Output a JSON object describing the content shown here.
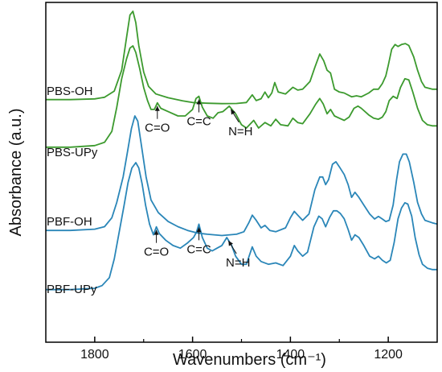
{
  "chart_data": {
    "type": "line",
    "xlabel": "Wavenumbers (cm⁻¹)",
    "ylabel": "Absorbance (a.u.)",
    "xlim": [
      1900,
      1100
    ],
    "x_reversed": true,
    "xticks": [
      1800,
      1600,
      1400,
      1200
    ],
    "y_ticks_shown": false,
    "colors": {
      "PBS": "#3c9a2e",
      "PBF": "#2a86b8"
    },
    "series": [
      {
        "name": "PBS-OH",
        "color": "#3c9a2e",
        "points": [
          [
            1900,
            0.07
          ],
          [
            1850,
            0.07
          ],
          [
            1800,
            0.078
          ],
          [
            1780,
            0.095
          ],
          [
            1760,
            0.16
          ],
          [
            1745,
            0.38
          ],
          [
            1735,
            0.72
          ],
          [
            1728,
            0.96
          ],
          [
            1722,
            1.0
          ],
          [
            1716,
            0.88
          ],
          [
            1710,
            0.64
          ],
          [
            1700,
            0.36
          ],
          [
            1690,
            0.21
          ],
          [
            1675,
            0.13
          ],
          [
            1650,
            0.09
          ],
          [
            1620,
            0.058
          ],
          [
            1600,
            0.04
          ],
          [
            1570,
            0.032
          ],
          [
            1540,
            0.028
          ],
          [
            1510,
            0.03
          ],
          [
            1490,
            0.04
          ],
          [
            1478,
            0.12
          ],
          [
            1470,
            0.06
          ],
          [
            1460,
            0.08
          ],
          [
            1452,
            0.15
          ],
          [
            1445,
            0.09
          ],
          [
            1438,
            0.14
          ],
          [
            1432,
            0.25
          ],
          [
            1425,
            0.15
          ],
          [
            1410,
            0.13
          ],
          [
            1395,
            0.2
          ],
          [
            1385,
            0.17
          ],
          [
            1375,
            0.18
          ],
          [
            1360,
            0.26
          ],
          [
            1350,
            0.41
          ],
          [
            1340,
            0.55
          ],
          [
            1332,
            0.48
          ],
          [
            1325,
            0.38
          ],
          [
            1318,
            0.35
          ],
          [
            1310,
            0.18
          ],
          [
            1300,
            0.15
          ],
          [
            1290,
            0.14
          ],
          [
            1275,
            0.1
          ],
          [
            1265,
            0.11
          ],
          [
            1255,
            0.1
          ],
          [
            1240,
            0.14
          ],
          [
            1230,
            0.18
          ],
          [
            1220,
            0.18
          ],
          [
            1212,
            0.24
          ],
          [
            1205,
            0.32
          ],
          [
            1200,
            0.43
          ],
          [
            1193,
            0.6
          ],
          [
            1186,
            0.65
          ],
          [
            1180,
            0.63
          ],
          [
            1173,
            0.65
          ],
          [
            1165,
            0.66
          ],
          [
            1158,
            0.64
          ],
          [
            1148,
            0.52
          ],
          [
            1140,
            0.38
          ],
          [
            1132,
            0.26
          ],
          [
            1125,
            0.2
          ],
          [
            1110,
            0.18
          ],
          [
            1100,
            0.18
          ]
        ]
      },
      {
        "name": "PBS-UPy",
        "color": "#3c9a2e",
        "points": [
          [
            1900,
            0.075
          ],
          [
            1850,
            0.075
          ],
          [
            1800,
            0.09
          ],
          [
            1780,
            0.12
          ],
          [
            1765,
            0.22
          ],
          [
            1755,
            0.44
          ],
          [
            1745,
            0.7
          ],
          [
            1735,
            0.88
          ],
          [
            1728,
            0.98
          ],
          [
            1722,
            1.0
          ],
          [
            1716,
            0.94
          ],
          [
            1708,
            0.79
          ],
          [
            1700,
            0.62
          ],
          [
            1692,
            0.5
          ],
          [
            1685,
            0.42
          ],
          [
            1678,
            0.42
          ],
          [
            1672,
            0.48
          ],
          [
            1665,
            0.43
          ],
          [
            1650,
            0.4
          ],
          [
            1630,
            0.36
          ],
          [
            1615,
            0.36
          ],
          [
            1600,
            0.42
          ],
          [
            1593,
            0.52
          ],
          [
            1587,
            0.54
          ],
          [
            1580,
            0.44
          ],
          [
            1570,
            0.36
          ],
          [
            1558,
            0.34
          ],
          [
            1548,
            0.39
          ],
          [
            1538,
            0.4
          ],
          [
            1525,
            0.45
          ],
          [
            1512,
            0.38
          ],
          [
            1500,
            0.28
          ],
          [
            1490,
            0.25
          ],
          [
            1475,
            0.32
          ],
          [
            1465,
            0.25
          ],
          [
            1452,
            0.3
          ],
          [
            1440,
            0.27
          ],
          [
            1430,
            0.33
          ],
          [
            1420,
            0.28
          ],
          [
            1405,
            0.27
          ],
          [
            1395,
            0.34
          ],
          [
            1385,
            0.3
          ],
          [
            1375,
            0.29
          ],
          [
            1360,
            0.38
          ],
          [
            1348,
            0.47
          ],
          [
            1340,
            0.52
          ],
          [
            1333,
            0.47
          ],
          [
            1325,
            0.38
          ],
          [
            1318,
            0.42
          ],
          [
            1310,
            0.36
          ],
          [
            1300,
            0.34
          ],
          [
            1290,
            0.32
          ],
          [
            1280,
            0.35
          ],
          [
            1270,
            0.43
          ],
          [
            1262,
            0.45
          ],
          [
            1255,
            0.43
          ],
          [
            1240,
            0.37
          ],
          [
            1230,
            0.34
          ],
          [
            1220,
            0.33
          ],
          [
            1212,
            0.35
          ],
          [
            1205,
            0.4
          ],
          [
            1198,
            0.5
          ],
          [
            1190,
            0.54
          ],
          [
            1182,
            0.52
          ],
          [
            1175,
            0.62
          ],
          [
            1166,
            0.7
          ],
          [
            1158,
            0.69
          ],
          [
            1150,
            0.58
          ],
          [
            1140,
            0.43
          ],
          [
            1130,
            0.32
          ],
          [
            1120,
            0.28
          ],
          [
            1110,
            0.27
          ],
          [
            1100,
            0.27
          ]
        ]
      },
      {
        "name": "PBF-OH",
        "color": "#2a86b8",
        "points": [
          [
            1900,
            0.1
          ],
          [
            1850,
            0.1
          ],
          [
            1800,
            0.11
          ],
          [
            1780,
            0.13
          ],
          [
            1765,
            0.2
          ],
          [
            1755,
            0.32
          ],
          [
            1742,
            0.52
          ],
          [
            1733,
            0.72
          ],
          [
            1725,
            0.9
          ],
          [
            1718,
            1.0
          ],
          [
            1712,
            0.96
          ],
          [
            1705,
            0.78
          ],
          [
            1695,
            0.52
          ],
          [
            1685,
            0.34
          ],
          [
            1670,
            0.24
          ],
          [
            1650,
            0.17
          ],
          [
            1630,
            0.13
          ],
          [
            1610,
            0.1
          ],
          [
            1590,
            0.08
          ],
          [
            1570,
            0.07
          ],
          [
            1540,
            0.06
          ],
          [
            1510,
            0.07
          ],
          [
            1495,
            0.09
          ],
          [
            1485,
            0.16
          ],
          [
            1478,
            0.22
          ],
          [
            1470,
            0.18
          ],
          [
            1460,
            0.12
          ],
          [
            1452,
            0.14
          ],
          [
            1442,
            0.1
          ],
          [
            1430,
            0.09
          ],
          [
            1410,
            0.12
          ],
          [
            1400,
            0.2
          ],
          [
            1392,
            0.25
          ],
          [
            1385,
            0.22
          ],
          [
            1375,
            0.18
          ],
          [
            1362,
            0.23
          ],
          [
            1350,
            0.42
          ],
          [
            1340,
            0.52
          ],
          [
            1334,
            0.52
          ],
          [
            1328,
            0.46
          ],
          [
            1322,
            0.5
          ],
          [
            1314,
            0.62
          ],
          [
            1307,
            0.64
          ],
          [
            1300,
            0.6
          ],
          [
            1290,
            0.54
          ],
          [
            1282,
            0.46
          ],
          [
            1275,
            0.36
          ],
          [
            1268,
            0.4
          ],
          [
            1260,
            0.36
          ],
          [
            1250,
            0.3
          ],
          [
            1238,
            0.23
          ],
          [
            1228,
            0.19
          ],
          [
            1220,
            0.21
          ],
          [
            1212,
            0.19
          ],
          [
            1205,
            0.17
          ],
          [
            1198,
            0.18
          ],
          [
            1190,
            0.3
          ],
          [
            1183,
            0.5
          ],
          [
            1177,
            0.64
          ],
          [
            1170,
            0.7
          ],
          [
            1163,
            0.7
          ],
          [
            1157,
            0.64
          ],
          [
            1148,
            0.48
          ],
          [
            1140,
            0.32
          ],
          [
            1132,
            0.23
          ],
          [
            1125,
            0.18
          ],
          [
            1110,
            0.16
          ],
          [
            1100,
            0.15
          ]
        ]
      },
      {
        "name": "PBF-UPy",
        "color": "#2a86b8",
        "points": [
          [
            1900,
            0.05
          ],
          [
            1850,
            0.05
          ],
          [
            1800,
            0.06
          ],
          [
            1785,
            0.08
          ],
          [
            1770,
            0.14
          ],
          [
            1760,
            0.28
          ],
          [
            1750,
            0.48
          ],
          [
            1740,
            0.68
          ],
          [
            1732,
            0.85
          ],
          [
            1724,
            0.96
          ],
          [
            1716,
            1.0
          ],
          [
            1710,
            0.96
          ],
          [
            1703,
            0.84
          ],
          [
            1696,
            0.68
          ],
          [
            1688,
            0.54
          ],
          [
            1680,
            0.46
          ],
          [
            1674,
            0.52
          ],
          [
            1668,
            0.47
          ],
          [
            1655,
            0.42
          ],
          [
            1640,
            0.38
          ],
          [
            1625,
            0.36
          ],
          [
            1610,
            0.4
          ],
          [
            1598,
            0.44
          ],
          [
            1592,
            0.48
          ],
          [
            1587,
            0.54
          ],
          [
            1580,
            0.44
          ],
          [
            1570,
            0.36
          ],
          [
            1560,
            0.34
          ],
          [
            1550,
            0.36
          ],
          [
            1540,
            0.38
          ],
          [
            1530,
            0.44
          ],
          [
            1520,
            0.38
          ],
          [
            1512,
            0.3
          ],
          [
            1500,
            0.24
          ],
          [
            1490,
            0.24
          ],
          [
            1478,
            0.37
          ],
          [
            1470,
            0.3
          ],
          [
            1460,
            0.26
          ],
          [
            1445,
            0.24
          ],
          [
            1430,
            0.25
          ],
          [
            1415,
            0.23
          ],
          [
            1400,
            0.3
          ],
          [
            1392,
            0.38
          ],
          [
            1385,
            0.34
          ],
          [
            1375,
            0.3
          ],
          [
            1365,
            0.33
          ],
          [
            1352,
            0.52
          ],
          [
            1342,
            0.6
          ],
          [
            1335,
            0.58
          ],
          [
            1328,
            0.52
          ],
          [
            1320,
            0.59
          ],
          [
            1312,
            0.64
          ],
          [
            1305,
            0.64
          ],
          [
            1298,
            0.62
          ],
          [
            1290,
            0.58
          ],
          [
            1282,
            0.5
          ],
          [
            1275,
            0.42
          ],
          [
            1268,
            0.46
          ],
          [
            1260,
            0.44
          ],
          [
            1250,
            0.38
          ],
          [
            1238,
            0.3
          ],
          [
            1228,
            0.28
          ],
          [
            1220,
            0.3
          ],
          [
            1212,
            0.27
          ],
          [
            1204,
            0.25
          ],
          [
            1196,
            0.27
          ],
          [
            1188,
            0.4
          ],
          [
            1180,
            0.58
          ],
          [
            1173,
            0.66
          ],
          [
            1166,
            0.7
          ],
          [
            1160,
            0.69
          ],
          [
            1152,
            0.6
          ],
          [
            1145,
            0.44
          ],
          [
            1137,
            0.31
          ],
          [
            1130,
            0.24
          ],
          [
            1120,
            0.21
          ],
          [
            1110,
            0.2
          ],
          [
            1100,
            0.2
          ]
        ]
      }
    ],
    "annotations": [
      {
        "series": "PBS-UPy",
        "text": "C=O",
        "x": 1672
      },
      {
        "series": "PBS-UPy",
        "text": "C=C",
        "x": 1587
      },
      {
        "series": "PBS-UPy",
        "text": "N=H",
        "x": 1525
      },
      {
        "series": "PBF-UPy",
        "text": "C=O",
        "x": 1674
      },
      {
        "series": "PBF-UPy",
        "text": "C=C",
        "x": 1587
      },
      {
        "series": "PBF-UPy",
        "text": "N=H",
        "x": 1530
      }
    ]
  }
}
